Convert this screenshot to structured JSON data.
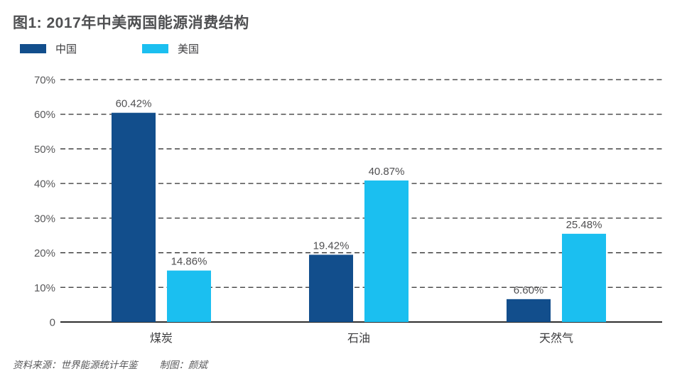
{
  "title": "图1: 2017年中美两国能源消费结构",
  "legend": [
    {
      "label": "中国",
      "color": "#124e8c"
    },
    {
      "label": "美国",
      "color": "#1bbff0"
    }
  ],
  "chart_data": {
    "type": "bar",
    "title": "图1: 2017年中美两国能源消费结构",
    "categories": [
      "煤炭",
      "石油",
      "天然气"
    ],
    "series": [
      {
        "key": "china",
        "name": "中国",
        "color": "#124e8c",
        "values": [
          60.42,
          19.42,
          6.6
        ],
        "labels": [
          "60.42%",
          "19.42%",
          "6.60%"
        ]
      },
      {
        "key": "usa",
        "name": "美国",
        "color": "#1bbff0",
        "values": [
          14.86,
          40.87,
          25.48
        ],
        "labels": [
          "14.86%",
          "40.87%",
          "25.48%"
        ]
      }
    ],
    "y_axis": {
      "ticks": [
        "70%",
        "60%",
        "50%",
        "40%",
        "30%",
        "20%",
        "10%",
        "0"
      ],
      "tick_values": [
        70,
        60,
        50,
        40,
        30,
        20,
        10,
        0
      ],
      "min": 0,
      "max": 70
    },
    "grid": "dashed horizontal, solid baseline",
    "legend_position": "top-left",
    "xlabel": "",
    "ylabel": ""
  },
  "footer": {
    "source": "资料来源：世界能源统计年鉴",
    "credit": "制图：颜斌"
  },
  "colors": {
    "china_bar": "#124e8c",
    "usa_bar": "#1bbff0",
    "gridline": "#2e2e2e",
    "axis_text": "#58585a",
    "title_text": "#4f5052",
    "background": "#ffffff"
  }
}
